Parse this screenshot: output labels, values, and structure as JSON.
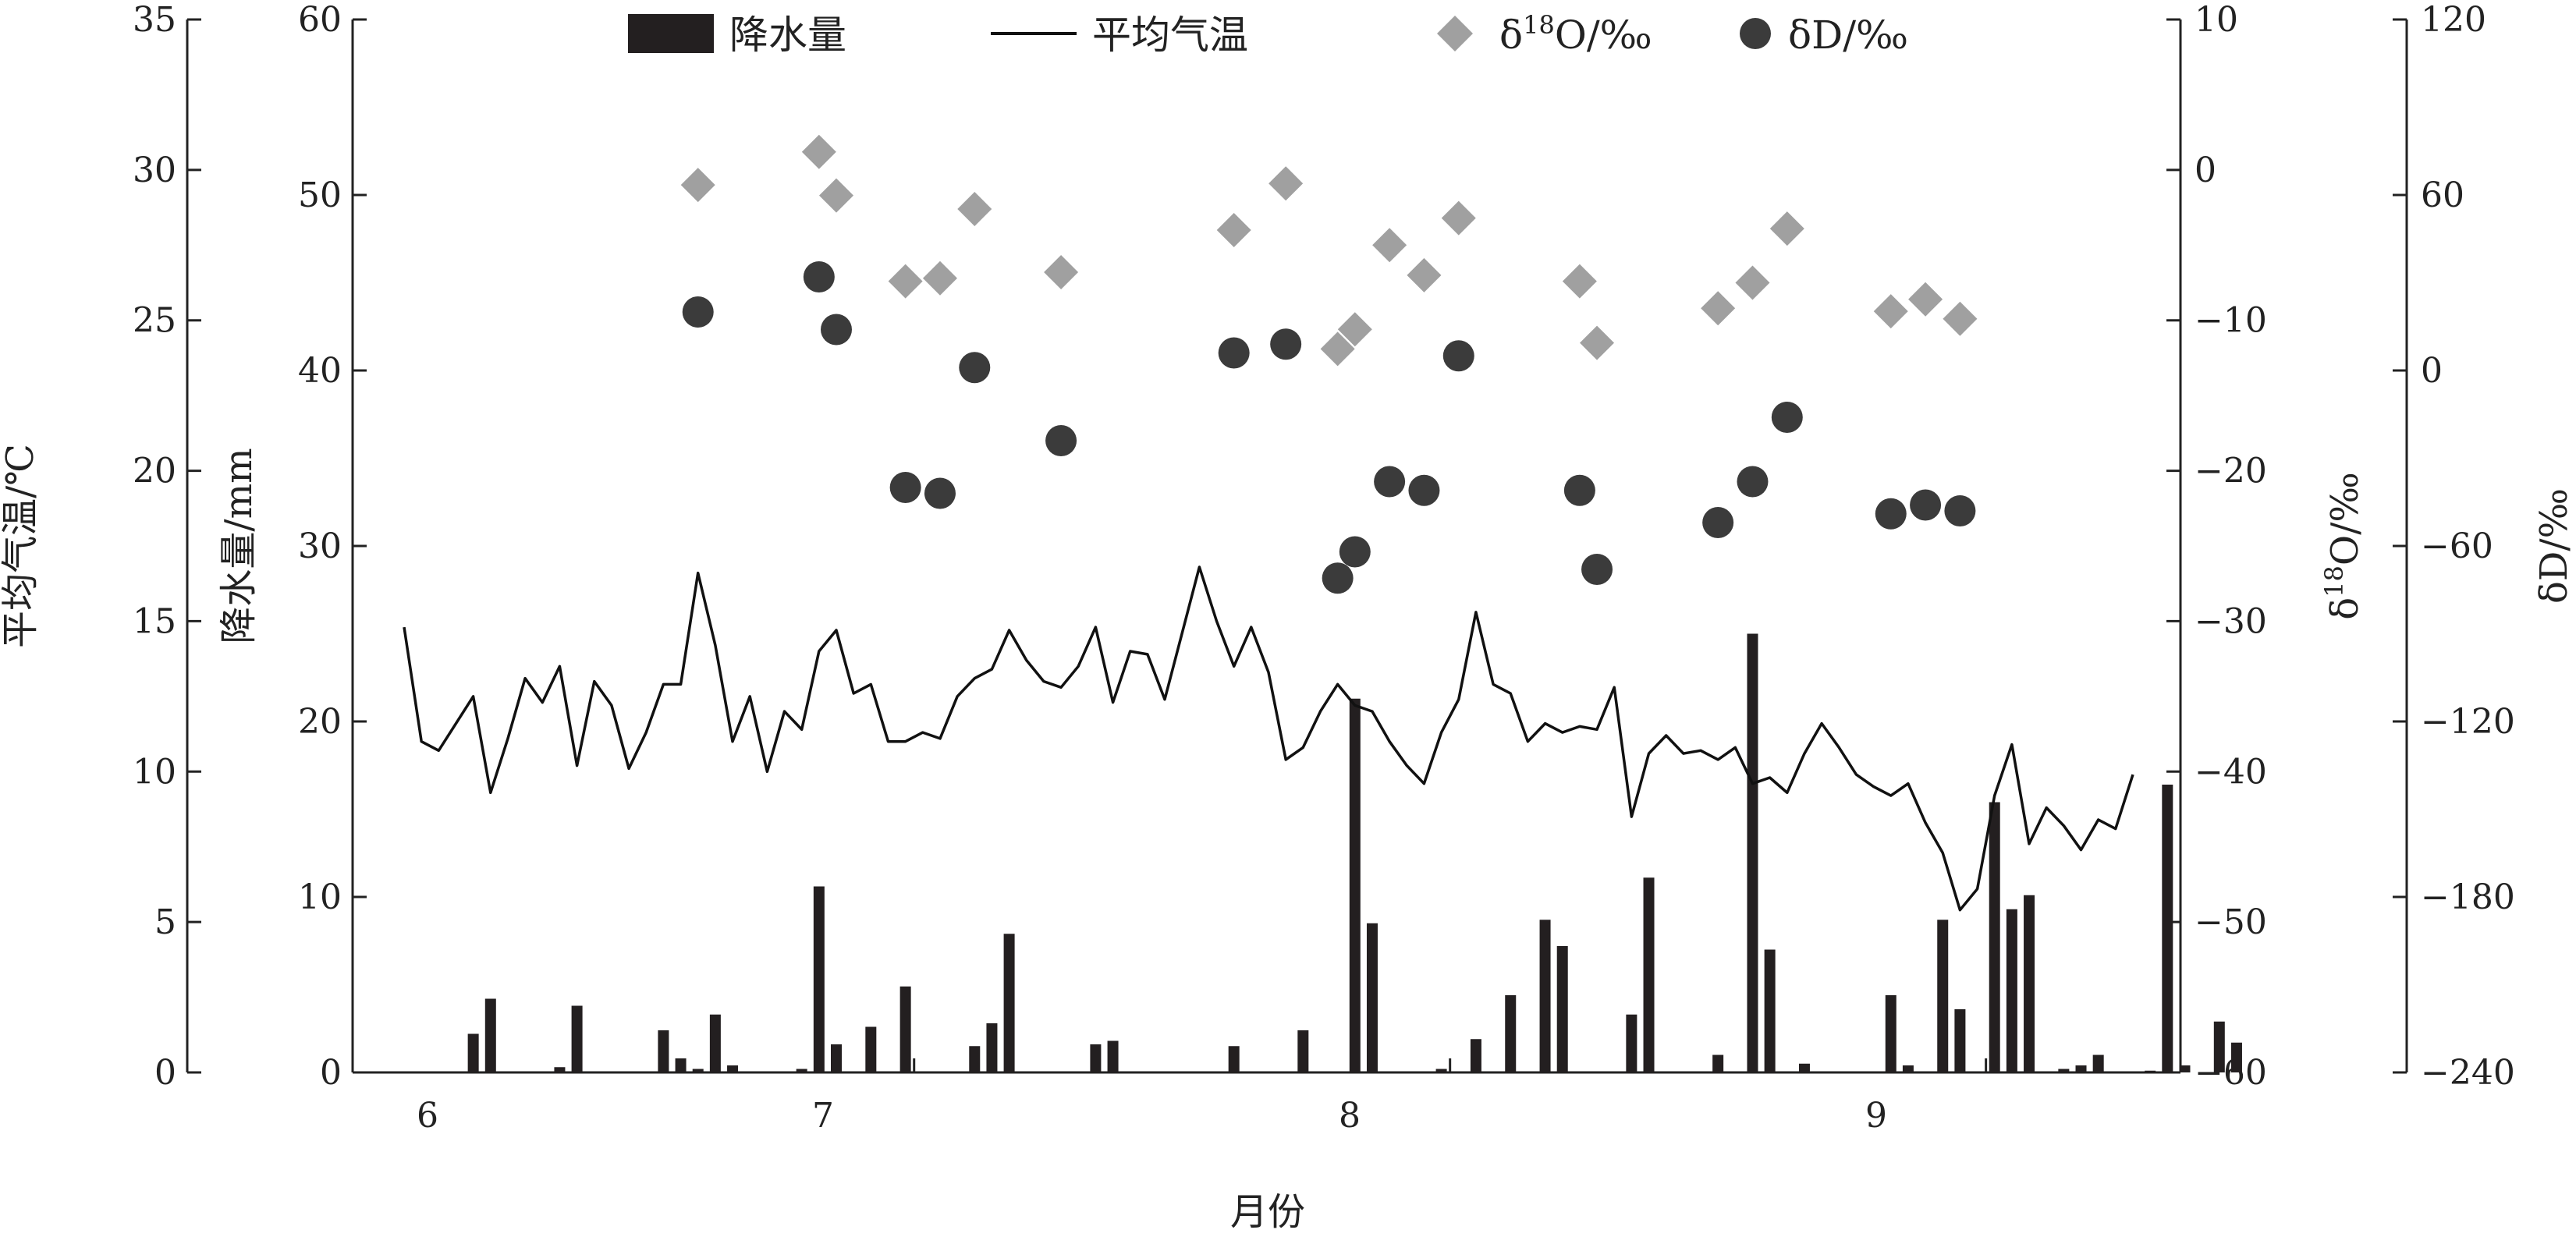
{
  "chart_data": {
    "type": "combo",
    "title": "",
    "xlabel": "月份",
    "x_ticks": [
      "6",
      "7",
      "8",
      "9"
    ],
    "axes": {
      "temperature": {
        "label": "平均气温/℃",
        "range": [
          0,
          35
        ],
        "ticks": [
          "0",
          "5",
          "10",
          "15",
          "20",
          "25",
          "30",
          "35"
        ]
      },
      "precipitation": {
        "label": "降水量/mm",
        "range": [
          0,
          60
        ],
        "ticks": [
          "0",
          "10",
          "20",
          "30",
          "40",
          "50",
          "60"
        ]
      },
      "d18o": {
        "label_main": "δ",
        "label_sup": "18",
        "label_rest": "O/‰",
        "range": [
          -60,
          10
        ],
        "ticks": [
          "−60",
          "−50",
          "−40",
          "−30",
          "−20",
          "−10",
          "0",
          "10"
        ]
      },
      "dd": {
        "label": "δD/‰",
        "range": [
          -240,
          120
        ],
        "ticks": [
          "−240",
          "−180",
          "−120",
          "−60",
          "0",
          "60",
          "120"
        ]
      }
    },
    "legend": {
      "placement": "top-center",
      "precip": "降水量",
      "temp": "平均气温",
      "d18o_main": "δ",
      "d18o_sup": "18",
      "d18o_rest": "O/‰",
      "dd": "δD/‰"
    },
    "series": {
      "precipitation_mm": [
        {
          "day": 5,
          "value": 2.2
        },
        {
          "day": 6,
          "value": 4.2
        },
        {
          "day": 10,
          "value": 0.3
        },
        {
          "day": 11,
          "value": 3.8
        },
        {
          "day": 16,
          "value": 2.4
        },
        {
          "day": 17,
          "value": 0.8
        },
        {
          "day": 18,
          "value": 0.2
        },
        {
          "day": 19,
          "value": 3.3
        },
        {
          "day": 20,
          "value": 0.4
        },
        {
          "day": 24,
          "value": 0.2
        },
        {
          "day": 25,
          "value": 10.6
        },
        {
          "day": 26,
          "value": 1.6
        },
        {
          "day": 28,
          "value": 2.6
        },
        {
          "day": 30,
          "value": 4.9
        },
        {
          "day": 34,
          "value": 1.5
        },
        {
          "day": 35,
          "value": 2.8
        },
        {
          "day": 36,
          "value": 7.9
        },
        {
          "day": 41,
          "value": 1.6
        },
        {
          "day": 42,
          "value": 1.8
        },
        {
          "day": 49,
          "value": 1.5
        },
        {
          "day": 53,
          "value": 2.4
        },
        {
          "day": 56,
          "value": 21.3
        },
        {
          "day": 57,
          "value": 8.5
        },
        {
          "day": 61,
          "value": 0.2
        },
        {
          "day": 63,
          "value": 1.9
        },
        {
          "day": 65,
          "value": 4.4
        },
        {
          "day": 67,
          "value": 8.7
        },
        {
          "day": 68,
          "value": 7.2
        },
        {
          "day": 72,
          "value": 3.3
        },
        {
          "day": 73,
          "value": 11.1
        },
        {
          "day": 77,
          "value": 1.0
        },
        {
          "day": 79,
          "value": 25.0
        },
        {
          "day": 80,
          "value": 7.0
        },
        {
          "day": 82,
          "value": 0.5
        },
        {
          "day": 87,
          "value": 4.4
        },
        {
          "day": 88,
          "value": 0.4
        },
        {
          "day": 90,
          "value": 8.7
        },
        {
          "day": 91,
          "value": 3.6
        },
        {
          "day": 93,
          "value": 15.4
        },
        {
          "day": 94,
          "value": 9.3
        },
        {
          "day": 95,
          "value": 10.1
        },
        {
          "day": 97,
          "value": 0.2
        },
        {
          "day": 98,
          "value": 0.4
        },
        {
          "day": 99,
          "value": 1.0
        },
        {
          "day": 102,
          "value": 0.1
        },
        {
          "day": 103,
          "value": 16.4
        },
        {
          "day": 104,
          "value": 0.4
        },
        {
          "day": 106,
          "value": 2.9
        },
        {
          "day": 107,
          "value": 1.7
        }
      ],
      "temperature_c": [
        {
          "day": 1,
          "value": 14.8
        },
        {
          "day": 2,
          "value": 11.0
        },
        {
          "day": 3,
          "value": 10.7
        },
        {
          "day": 4,
          "value": 11.6
        },
        {
          "day": 5,
          "value": 12.5
        },
        {
          "day": 6,
          "value": 9.3
        },
        {
          "day": 7,
          "value": 11.1
        },
        {
          "day": 8,
          "value": 13.1
        },
        {
          "day": 9,
          "value": 12.3
        },
        {
          "day": 10,
          "value": 13.5
        },
        {
          "day": 11,
          "value": 10.2
        },
        {
          "day": 12,
          "value": 13.0
        },
        {
          "day": 13,
          "value": 12.2
        },
        {
          "day": 14,
          "value": 10.1
        },
        {
          "day": 15,
          "value": 11.3
        },
        {
          "day": 16,
          "value": 12.9
        },
        {
          "day": 17,
          "value": 12.9
        },
        {
          "day": 18,
          "value": 16.6
        },
        {
          "day": 19,
          "value": 14.2
        },
        {
          "day": 20,
          "value": 11.0
        },
        {
          "day": 21,
          "value": 12.5
        },
        {
          "day": 22,
          "value": 10.0
        },
        {
          "day": 23,
          "value": 12.0
        },
        {
          "day": 24,
          "value": 11.4
        },
        {
          "day": 25,
          "value": 14.0
        },
        {
          "day": 26,
          "value": 14.7
        },
        {
          "day": 27,
          "value": 12.6
        },
        {
          "day": 28,
          "value": 12.9
        },
        {
          "day": 29,
          "value": 11.0
        },
        {
          "day": 30,
          "value": 11.0
        },
        {
          "day": 31,
          "value": 11.3
        },
        {
          "day": 32,
          "value": 11.1
        },
        {
          "day": 33,
          "value": 12.5
        },
        {
          "day": 34,
          "value": 13.1
        },
        {
          "day": 35,
          "value": 13.4
        },
        {
          "day": 36,
          "value": 14.7
        },
        {
          "day": 37,
          "value": 13.7
        },
        {
          "day": 38,
          "value": 13.0
        },
        {
          "day": 39,
          "value": 12.8
        },
        {
          "day": 40,
          "value": 13.5
        },
        {
          "day": 41,
          "value": 14.8
        },
        {
          "day": 42,
          "value": 12.3
        },
        {
          "day": 43,
          "value": 14.0
        },
        {
          "day": 44,
          "value": 13.9
        },
        {
          "day": 45,
          "value": 12.4
        },
        {
          "day": 46,
          "value": 14.6
        },
        {
          "day": 47,
          "value": 16.8
        },
        {
          "day": 48,
          "value": 15.0
        },
        {
          "day": 49,
          "value": 13.5
        },
        {
          "day": 50,
          "value": 14.8
        },
        {
          "day": 51,
          "value": 13.3
        },
        {
          "day": 52,
          "value": 10.4
        },
        {
          "day": 53,
          "value": 10.8
        },
        {
          "day": 54,
          "value": 12.0
        },
        {
          "day": 55,
          "value": 12.9
        },
        {
          "day": 56,
          "value": 12.2
        },
        {
          "day": 57,
          "value": 12.0
        },
        {
          "day": 58,
          "value": 11.0
        },
        {
          "day": 59,
          "value": 10.2
        },
        {
          "day": 60,
          "value": 9.6
        },
        {
          "day": 61,
          "value": 11.3
        },
        {
          "day": 62,
          "value": 12.4
        },
        {
          "day": 63,
          "value": 15.3
        },
        {
          "day": 64,
          "value": 12.9
        },
        {
          "day": 65,
          "value": 12.6
        },
        {
          "day": 66,
          "value": 11.0
        },
        {
          "day": 67,
          "value": 11.6
        },
        {
          "day": 68,
          "value": 11.3
        },
        {
          "day": 69,
          "value": 11.5
        },
        {
          "day": 70,
          "value": 11.4
        },
        {
          "day": 71,
          "value": 12.8
        },
        {
          "day": 72,
          "value": 8.5
        },
        {
          "day": 73,
          "value": 10.6
        },
        {
          "day": 74,
          "value": 11.2
        },
        {
          "day": 75,
          "value": 10.6
        },
        {
          "day": 76,
          "value": 10.7
        },
        {
          "day": 77,
          "value": 10.4
        },
        {
          "day": 78,
          "value": 10.8
        },
        {
          "day": 79,
          "value": 9.6
        },
        {
          "day": 80,
          "value": 9.8
        },
        {
          "day": 81,
          "value": 9.3
        },
        {
          "day": 82,
          "value": 10.6
        },
        {
          "day": 83,
          "value": 11.6
        },
        {
          "day": 84,
          "value": 10.8
        },
        {
          "day": 85,
          "value": 9.9
        },
        {
          "day": 86,
          "value": 9.5
        },
        {
          "day": 87,
          "value": 9.2
        },
        {
          "day": 88,
          "value": 9.6
        },
        {
          "day": 89,
          "value": 8.3
        },
        {
          "day": 90,
          "value": 7.3
        },
        {
          "day": 91,
          "value": 5.4
        },
        {
          "day": 92,
          "value": 6.1
        },
        {
          "day": 93,
          "value": 9.2
        },
        {
          "day": 94,
          "value": 10.9
        },
        {
          "day": 95,
          "value": 7.6
        },
        {
          "day": 96,
          "value": 8.8
        },
        {
          "day": 97,
          "value": 8.2
        },
        {
          "day": 98,
          "value": 7.4
        },
        {
          "day": 99,
          "value": 8.4
        },
        {
          "day": 100,
          "value": 8.1
        },
        {
          "day": 101,
          "value": 9.9
        }
      ],
      "d18o_permil": [
        {
          "day": 18,
          "value": -1.0
        },
        {
          "day": 25,
          "value": 1.2
        },
        {
          "day": 26,
          "value": -1.7
        },
        {
          "day": 30,
          "value": -7.4
        },
        {
          "day": 32,
          "value": -7.2
        },
        {
          "day": 34,
          "value": -2.6
        },
        {
          "day": 39,
          "value": -6.8
        },
        {
          "day": 49,
          "value": -4.0
        },
        {
          "day": 52,
          "value": -0.9
        },
        {
          "day": 55,
          "value": -11.9
        },
        {
          "day": 56,
          "value": -10.6
        },
        {
          "day": 58,
          "value": -5.0
        },
        {
          "day": 60,
          "value": -7.0
        },
        {
          "day": 62,
          "value": -3.2
        },
        {
          "day": 69,
          "value": -7.4
        },
        {
          "day": 70,
          "value": -11.5
        },
        {
          "day": 77,
          "value": -9.2
        },
        {
          "day": 79,
          "value": -7.5
        },
        {
          "day": 81,
          "value": -3.9
        },
        {
          "day": 87,
          "value": -9.4
        },
        {
          "day": 89,
          "value": -8.6
        },
        {
          "day": 91,
          "value": -9.9
        }
      ],
      "dd_permil": [
        {
          "day": 18,
          "value": 20
        },
        {
          "day": 25,
          "value": 32
        },
        {
          "day": 26,
          "value": 14
        },
        {
          "day": 30,
          "value": -40
        },
        {
          "day": 32,
          "value": -42
        },
        {
          "day": 34,
          "value": 1
        },
        {
          "day": 39,
          "value": -24
        },
        {
          "day": 49,
          "value": 6
        },
        {
          "day": 52,
          "value": 9
        },
        {
          "day": 55,
          "value": -71
        },
        {
          "day": 56,
          "value": -62
        },
        {
          "day": 58,
          "value": -38
        },
        {
          "day": 60,
          "value": -41
        },
        {
          "day": 62,
          "value": 5
        },
        {
          "day": 69,
          "value": -41
        },
        {
          "day": 70,
          "value": -68
        },
        {
          "day": 77,
          "value": -52
        },
        {
          "day": 79,
          "value": -38
        },
        {
          "day": 81,
          "value": -16
        },
        {
          "day": 87,
          "value": -49
        },
        {
          "day": 89,
          "value": -46
        },
        {
          "day": 91,
          "value": -48
        }
      ]
    }
  }
}
